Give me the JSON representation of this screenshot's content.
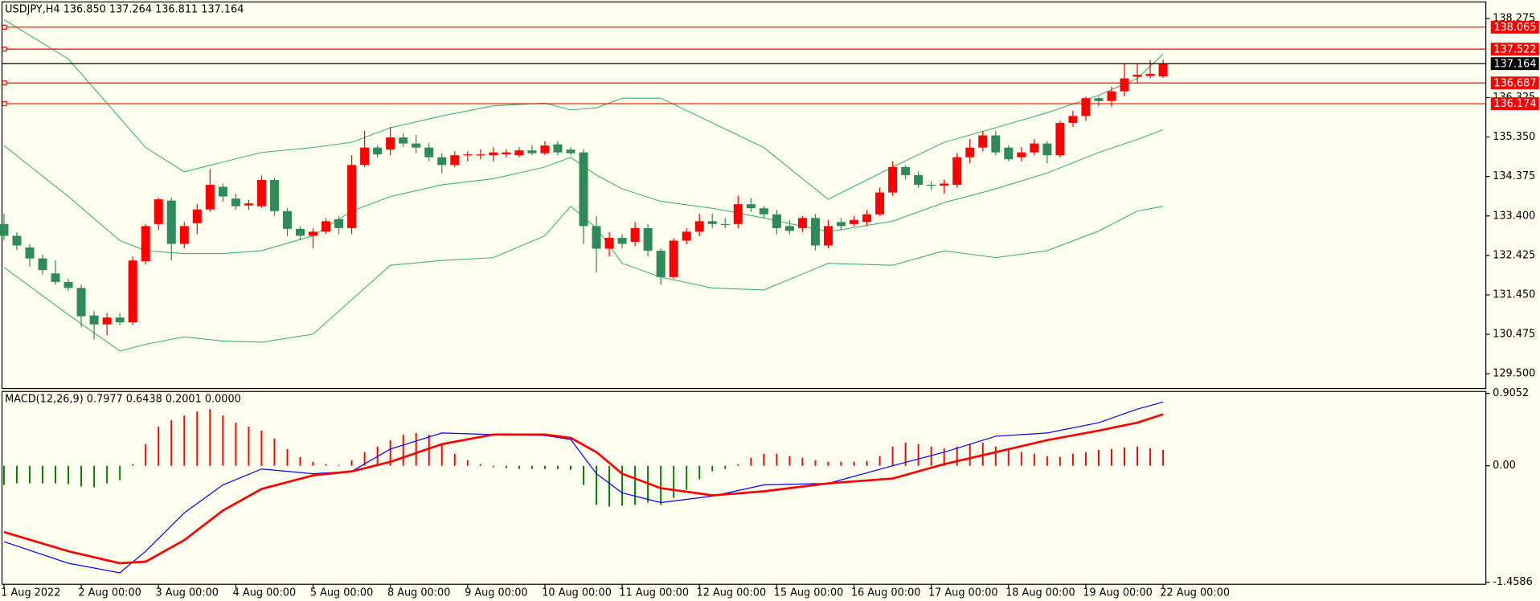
{
  "chart_data": [
    {
      "type": "candlestick",
      "title": "USDJPY,H4  136.850 137.264 136.811 137.164",
      "up_color": "#ff0000",
      "down_color": "#2e8b57",
      "candles": [
        [
          133.2,
          133.45,
          132.8,
          132.91
        ],
        [
          132.91,
          133.0,
          132.55,
          132.67
        ],
        [
          132.62,
          132.7,
          132.15,
          132.35
        ],
        [
          132.35,
          132.45,
          131.95,
          132.06
        ],
        [
          131.98,
          132.3,
          131.7,
          131.77
        ],
        [
          131.77,
          131.85,
          131.55,
          131.62
        ],
        [
          131.62,
          131.7,
          130.65,
          130.92
        ],
        [
          130.94,
          131.05,
          130.35,
          130.72
        ],
        [
          130.72,
          131.0,
          130.45,
          130.89
        ],
        [
          130.89,
          131.0,
          130.7,
          130.77
        ],
        [
          130.77,
          132.4,
          130.7,
          132.3
        ],
        [
          132.28,
          133.2,
          132.2,
          133.15
        ],
        [
          133.2,
          133.85,
          133.05,
          133.81
        ],
        [
          133.78,
          133.85,
          132.3,
          132.71
        ],
        [
          132.71,
          133.25,
          132.6,
          133.15
        ],
        [
          133.22,
          133.7,
          132.95,
          133.56
        ],
        [
          133.56,
          134.56,
          133.5,
          134.17
        ],
        [
          134.12,
          134.2,
          133.75,
          133.88
        ],
        [
          133.83,
          133.95,
          133.55,
          133.64
        ],
        [
          133.66,
          133.8,
          133.55,
          133.71
        ],
        [
          133.64,
          134.4,
          133.6,
          134.29
        ],
        [
          134.29,
          134.35,
          133.4,
          133.52
        ],
        [
          133.52,
          133.6,
          132.9,
          133.08
        ],
        [
          133.08,
          133.15,
          132.8,
          132.91
        ],
        [
          132.91,
          133.1,
          132.6,
          133.01
        ],
        [
          133.01,
          133.35,
          132.95,
          133.27
        ],
        [
          133.32,
          133.4,
          132.95,
          133.1
        ],
        [
          133.1,
          134.9,
          132.95,
          134.66
        ],
        [
          134.66,
          135.5,
          134.6,
          135.09
        ],
        [
          135.09,
          135.15,
          134.85,
          134.92
        ],
        [
          135.04,
          135.6,
          134.9,
          135.34
        ],
        [
          135.34,
          135.45,
          135.1,
          135.19
        ],
        [
          135.19,
          135.4,
          134.95,
          135.09
        ],
        [
          135.09,
          135.2,
          134.75,
          134.85
        ],
        [
          134.85,
          134.95,
          134.45,
          134.66
        ],
        [
          134.66,
          135.0,
          134.6,
          134.9
        ],
        [
          134.9,
          135.0,
          134.75,
          134.92
        ],
        [
          134.9,
          135.05,
          134.8,
          134.92
        ],
        [
          134.9,
          135.1,
          134.75,
          134.97
        ],
        [
          134.92,
          135.05,
          134.85,
          134.97
        ],
        [
          134.9,
          135.1,
          134.85,
          135.02
        ],
        [
          135.02,
          135.15,
          134.9,
          134.95
        ],
        [
          134.95,
          135.25,
          134.9,
          135.14
        ],
        [
          135.17,
          135.25,
          134.9,
          134.97
        ],
        [
          135.04,
          135.1,
          134.9,
          134.95
        ],
        [
          134.97,
          135.05,
          132.7,
          133.15
        ],
        [
          133.15,
          133.4,
          132.0,
          132.59
        ],
        [
          132.59,
          133.0,
          132.4,
          132.86
        ],
        [
          132.86,
          132.95,
          132.6,
          132.71
        ],
        [
          132.76,
          133.25,
          132.65,
          133.1
        ],
        [
          133.1,
          133.2,
          132.4,
          132.54
        ],
        [
          132.54,
          132.6,
          131.7,
          131.89
        ],
        [
          131.89,
          132.85,
          131.85,
          132.79
        ],
        [
          132.79,
          133.1,
          132.7,
          133.01
        ],
        [
          133.01,
          133.45,
          132.9,
          133.27
        ],
        [
          133.27,
          133.45,
          133.1,
          133.2
        ],
        [
          133.2,
          133.35,
          133.1,
          133.19
        ],
        [
          133.2,
          133.9,
          133.1,
          133.69
        ],
        [
          133.69,
          133.85,
          133.5,
          133.59
        ],
        [
          133.59,
          133.65,
          133.35,
          133.44
        ],
        [
          133.44,
          133.55,
          132.95,
          133.1
        ],
        [
          133.15,
          133.3,
          132.95,
          133.03
        ],
        [
          133.1,
          133.4,
          133.0,
          133.35
        ],
        [
          133.35,
          133.45,
          132.55,
          132.67
        ],
        [
          132.67,
          133.3,
          132.6,
          133.15
        ],
        [
          133.25,
          133.35,
          133.05,
          133.15
        ],
        [
          133.2,
          133.4,
          133.15,
          133.3
        ],
        [
          133.25,
          133.55,
          133.15,
          133.44
        ],
        [
          133.44,
          134.1,
          133.4,
          133.98
        ],
        [
          133.98,
          134.75,
          133.9,
          134.61
        ],
        [
          134.61,
          134.65,
          134.3,
          134.41
        ],
        [
          134.41,
          134.5,
          134.1,
          134.17
        ],
        [
          134.17,
          134.25,
          134.05,
          134.15
        ],
        [
          134.15,
          134.3,
          133.95,
          134.2
        ],
        [
          134.17,
          134.95,
          134.1,
          134.85
        ],
        [
          134.85,
          135.3,
          134.7,
          135.09
        ],
        [
          135.09,
          135.5,
          135.0,
          135.39
        ],
        [
          135.39,
          135.5,
          134.9,
          134.97
        ],
        [
          135.09,
          135.15,
          134.75,
          134.8
        ],
        [
          134.85,
          135.1,
          134.75,
          134.97
        ],
        [
          134.97,
          135.3,
          134.9,
          135.19
        ],
        [
          135.19,
          135.25,
          134.7,
          134.9
        ],
        [
          134.9,
          135.75,
          134.85,
          135.7
        ],
        [
          135.7,
          136.0,
          135.6,
          135.87
        ],
        [
          135.87,
          136.35,
          135.75,
          136.31
        ],
        [
          136.31,
          136.35,
          136.1,
          136.24
        ],
        [
          136.24,
          136.6,
          136.1,
          136.48
        ],
        [
          136.48,
          137.15,
          136.35,
          136.8
        ],
        [
          136.84,
          137.15,
          136.7,
          136.89
        ],
        [
          136.86,
          137.25,
          136.8,
          136.91
        ],
        [
          136.85,
          137.264,
          136.811,
          137.164
        ]
      ],
      "x_labels": [
        "1 Aug 2022",
        "2 Aug 00:00",
        "3 Aug 00:00",
        "4 Aug 00:00",
        "5 Aug 00:00",
        "8 Aug 00:00",
        "9 Aug 00:00",
        "10 Aug 00:00",
        "11 Aug 00:00",
        "12 Aug 00:00",
        "15 Aug 00:00",
        "16 Aug 00:00",
        "17 Aug 00:00",
        "18 Aug 00:00",
        "19 Aug 00:00",
        "22 Aug 00:00"
      ],
      "overlay_x": [
        0,
        5,
        9,
        11,
        14,
        17,
        20,
        24,
        27,
        30,
        34,
        38,
        42,
        44,
        46,
        48,
        51,
        55,
        59,
        64,
        69,
        73,
        77,
        81,
        85,
        88,
        90
      ],
      "overlays": [
        {
          "color": "#3cb371",
          "values": [
            138.25,
            137.28,
            135.82,
            135.09,
            134.49,
            134.73,
            134.97,
            135.09,
            135.22,
            135.58,
            135.87,
            136.12,
            136.19,
            136.02,
            136.07,
            136.31,
            136.31,
            135.7,
            135.09,
            133.81,
            134.61,
            135.22,
            135.58,
            135.95,
            136.38,
            136.8,
            137.4
          ]
        },
        {
          "color": "#3cb371",
          "values": [
            135.14,
            133.88,
            132.79,
            132.54,
            132.47,
            132.47,
            132.54,
            132.91,
            133.52,
            133.88,
            134.17,
            134.32,
            134.61,
            134.85,
            134.41,
            134.07,
            133.76,
            133.59,
            133.35,
            133.01,
            133.27,
            133.73,
            134.07,
            134.46,
            134.97,
            135.29,
            135.53
          ]
        },
        {
          "color": "#3cb371",
          "values": [
            132.13,
            130.96,
            130.06,
            130.23,
            130.41,
            130.31,
            130.28,
            130.48,
            131.33,
            132.18,
            132.3,
            132.37,
            132.91,
            133.64,
            133.1,
            132.23,
            131.89,
            131.62,
            131.57,
            132.23,
            132.18,
            132.54,
            132.37,
            132.54,
            133.03,
            133.52,
            133.64
          ]
        }
      ],
      "levels": [
        {
          "value": 138.065,
          "color": "#ff0000"
        },
        {
          "value": 137.522,
          "color": "#ff0000"
        },
        {
          "value": 137.164,
          "color": "#000000"
        },
        {
          "value": 136.687,
          "color": "#ff0000"
        },
        {
          "value": 136.174,
          "color": "#ff0000"
        }
      ],
      "ylim": [
        129.135,
        138.688
      ],
      "yticks": [
        138.275,
        136.325,
        {
          "value": 135.35,
          "label": "135.350"
        },
        134.375,
        {
          "value": 133.4,
          "label": "133.400"
        },
        132.425,
        {
          "value": 131.45,
          "label": "131.450"
        },
        130.475,
        {
          "value": 129.5,
          "label": "129.500"
        }
      ]
    },
    {
      "type": "macd",
      "title": "MACD(12,26,9) 0.7977 0.6438 0.2001 0.0000",
      "up_color": "#ff0000",
      "down_color": "#008000",
      "histogram": [
        -0.24,
        -0.22,
        -0.22,
        -0.22,
        -0.22,
        -0.23,
        -0.26,
        -0.27,
        -0.22,
        -0.18,
        0.02,
        0.27,
        0.49,
        0.57,
        0.63,
        0.68,
        0.71,
        0.63,
        0.54,
        0.49,
        0.44,
        0.34,
        0.21,
        0.11,
        0.05,
        0.02,
        0.01,
        0.07,
        0.17,
        0.24,
        0.32,
        0.39,
        0.41,
        0.39,
        0.27,
        0.15,
        0.07,
        0.02,
        -0.02,
        -0.03,
        -0.04,
        -0.04,
        -0.04,
        -0.04,
        -0.05,
        -0.24,
        -0.49,
        -0.51,
        -0.5,
        -0.49,
        -0.46,
        -0.49,
        -0.4,
        -0.3,
        -0.17,
        -0.07,
        -0.04,
        0.02,
        0.1,
        0.15,
        0.15,
        0.12,
        0.1,
        0.07,
        0.05,
        0.05,
        0.05,
        0.06,
        0.12,
        0.24,
        0.29,
        0.27,
        0.24,
        0.22,
        0.24,
        0.27,
        0.29,
        0.24,
        0.2,
        0.17,
        0.15,
        0.12,
        0.11,
        0.15,
        0.17,
        0.2,
        0.21,
        0.23,
        0.24,
        0.22,
        0.2001
      ],
      "x": [
        0,
        5,
        9,
        11,
        14,
        17,
        20,
        24,
        27,
        30,
        34,
        38,
        42,
        44,
        46,
        48,
        51,
        55,
        59,
        64,
        69,
        73,
        77,
        81,
        85,
        88,
        90
      ],
      "lines": [
        {
          "color": "#0000ff",
          "width": 1,
          "values": [
            -0.95,
            -1.22,
            -1.34,
            -1.07,
            -0.59,
            -0.24,
            -0.04,
            -0.1,
            -0.07,
            0.21,
            0.41,
            0.39,
            0.38,
            0.33,
            -0.1,
            -0.34,
            -0.46,
            -0.38,
            -0.24,
            -0.22,
            0.0,
            0.17,
            0.37,
            0.41,
            0.54,
            0.71,
            0.7977
          ]
        },
        {
          "color": "#ff0000",
          "width": 2.2,
          "values": [
            -0.83,
            -1.07,
            -1.22,
            -1.2,
            -0.93,
            -0.56,
            -0.29,
            -0.12,
            -0.07,
            0.05,
            0.27,
            0.39,
            0.39,
            0.35,
            0.17,
            -0.1,
            -0.28,
            -0.37,
            -0.32,
            -0.22,
            -0.16,
            0.02,
            0.17,
            0.32,
            0.44,
            0.54,
            0.6438
          ]
        }
      ],
      "ylim": [
        -1.4586,
        0.9052
      ],
      "yticks": [
        0.9052,
        {
          "value": 0,
          "label": "0.00"
        },
        -1.4586
      ]
    }
  ]
}
